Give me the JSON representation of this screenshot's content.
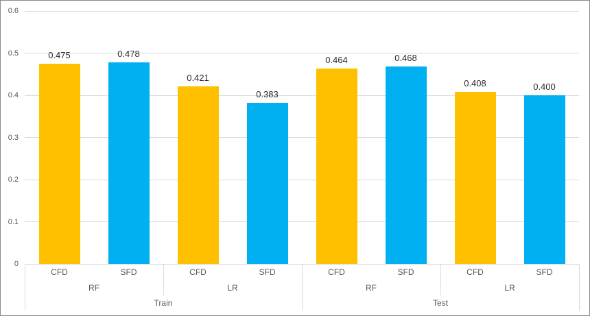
{
  "chart_data": {
    "type": "bar",
    "title": "",
    "xlabel": "",
    "ylabel": "",
    "ylim": [
      0,
      0.6
    ],
    "y_ticks": [
      "0.6",
      "0.5",
      "0.4",
      "0.3",
      "0.2",
      "0.1",
      "0"
    ],
    "y_tick_values": [
      0.6,
      0.5,
      0.4,
      0.3,
      0.2,
      0.1,
      0
    ],
    "grid": true,
    "legend": "none",
    "series_colors": {
      "CFD": "#FFC000",
      "SFD": "#00B0F0"
    },
    "gridline_color": "#d9d9d9",
    "axis_text_color": "#595959",
    "value_label_color": "#2b2b2b",
    "groups": [
      {
        "label": "Train",
        "subgroups": [
          {
            "label": "RF",
            "bars": [
              {
                "category": "CFD",
                "value": 0.475,
                "label": "0.475"
              },
              {
                "category": "SFD",
                "value": 0.478,
                "label": "0.478"
              }
            ]
          },
          {
            "label": "LR",
            "bars": [
              {
                "category": "CFD",
                "value": 0.421,
                "label": "0.421"
              },
              {
                "category": "SFD",
                "value": 0.383,
                "label": "0.383"
              }
            ]
          }
        ]
      },
      {
        "label": "Test",
        "subgroups": [
          {
            "label": "RF",
            "bars": [
              {
                "category": "CFD",
                "value": 0.464,
                "label": "0.464"
              },
              {
                "category": "SFD",
                "value": 0.468,
                "label": "0.468"
              }
            ]
          },
          {
            "label": "LR",
            "bars": [
              {
                "category": "CFD",
                "value": 0.408,
                "label": "0.408"
              },
              {
                "category": "SFD",
                "value": 0.4,
                "label": "0.400"
              }
            ]
          }
        ]
      }
    ]
  }
}
